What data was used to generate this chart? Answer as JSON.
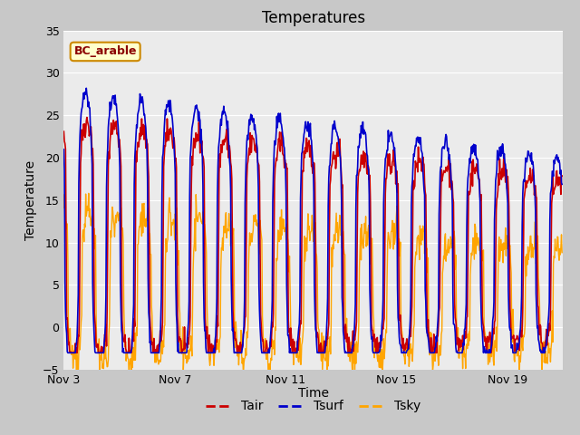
{
  "title": "Temperatures",
  "xlabel": "Time",
  "ylabel": "Temperature",
  "ylim": [
    -5,
    35
  ],
  "yticks": [
    -5,
    0,
    5,
    10,
    15,
    20,
    25,
    30,
    35
  ],
  "xtick_labels": [
    "Nov 3",
    "Nov 7",
    "Nov 11",
    "Nov 15",
    "Nov 19"
  ],
  "xtick_positions": [
    3,
    7,
    11,
    15,
    19
  ],
  "xlim": [
    3,
    21
  ],
  "legend_label": "BC_arable",
  "line_Tair_color": "#cc0000",
  "line_Tsurf_color": "#0000cc",
  "line_Tsky_color": "#ffa500",
  "fig_bg_color": "#c8c8c8",
  "axes_bg_color": "#ebebeb",
  "title_fontsize": 12,
  "axis_label_fontsize": 10,
  "tick_fontsize": 9,
  "legend_fontsize": 10
}
